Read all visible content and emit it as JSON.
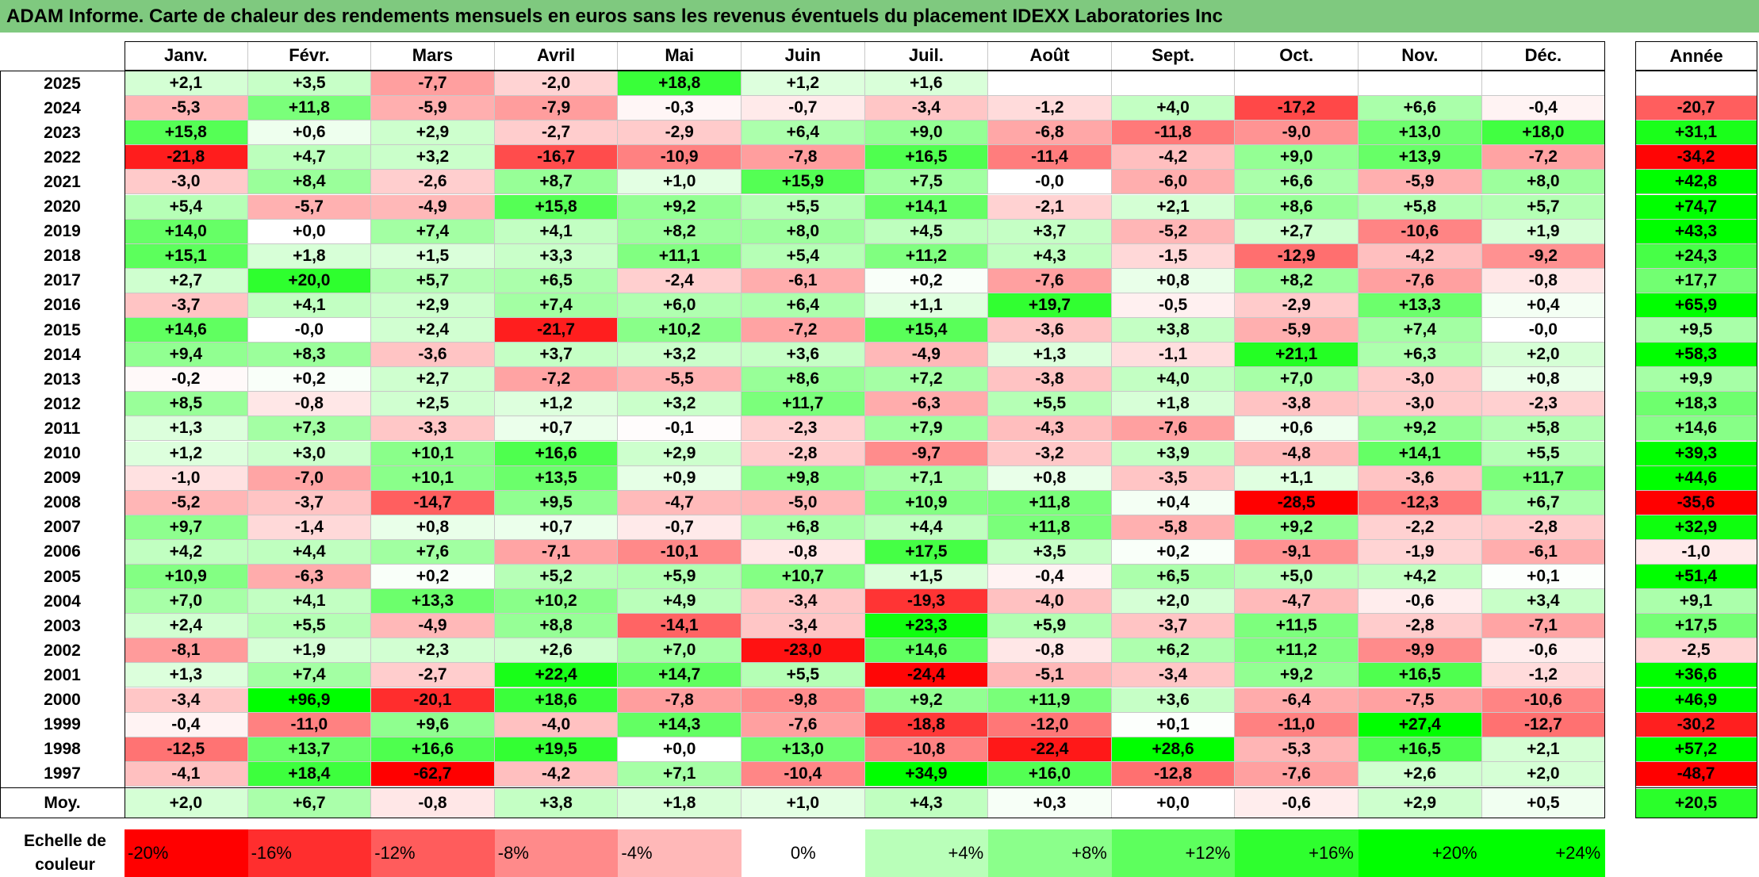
{
  "title": "ADAM Informe. Carte de chaleur des rendements mensuels en euros sans les revenus éventuels du placement IDEXX Laboratories Inc",
  "chart_data": {
    "type": "heatmap",
    "columns": [
      "Janv.",
      "Févr.",
      "Mars",
      "Avril",
      "Mai",
      "Juin",
      "Juil.",
      "Août",
      "Sept.",
      "Oct.",
      "Nov.",
      "Déc."
    ],
    "annual_header": "Année",
    "rows": [
      {
        "year": "2025",
        "values": [
          "+2,1",
          "+3,5",
          "-7,7",
          "-2,0",
          "+18,8",
          "+1,2",
          "+1,6",
          "",
          "",
          "",
          "",
          ""
        ],
        "annual": ""
      },
      {
        "year": "2024",
        "values": [
          "-5,3",
          "+11,8",
          "-5,9",
          "-7,9",
          "-0,3",
          "-0,7",
          "-3,4",
          "-1,2",
          "+4,0",
          "-17,2",
          "+6,6",
          "-0,4"
        ],
        "annual": "-20,7"
      },
      {
        "year": "2023",
        "values": [
          "+15,8",
          "+0,6",
          "+2,9",
          "-2,7",
          "-2,9",
          "+6,4",
          "+9,0",
          "-6,8",
          "-11,8",
          "-9,0",
          "+13,0",
          "+18,0"
        ],
        "annual": "+31,1"
      },
      {
        "year": "2022",
        "values": [
          "-21,8",
          "+4,7",
          "+3,2",
          "-16,7",
          "-10,9",
          "-7,8",
          "+16,5",
          "-11,4",
          "-4,2",
          "+9,0",
          "+13,9",
          "-7,2"
        ],
        "annual": "-34,2"
      },
      {
        "year": "2021",
        "values": [
          "-3,0",
          "+8,4",
          "-2,6",
          "+8,7",
          "+1,0",
          "+15,9",
          "+7,5",
          "-0,0",
          "-6,0",
          "+6,6",
          "-5,9",
          "+8,0"
        ],
        "annual": "+42,8"
      },
      {
        "year": "2020",
        "values": [
          "+5,4",
          "-5,7",
          "-4,9",
          "+15,8",
          "+9,2",
          "+5,5",
          "+14,1",
          "-2,1",
          "+2,1",
          "+8,6",
          "+5,8",
          "+5,7"
        ],
        "annual": "+74,7"
      },
      {
        "year": "2019",
        "values": [
          "+14,0",
          "+0,0",
          "+7,4",
          "+4,1",
          "+8,2",
          "+8,0",
          "+4,5",
          "+3,7",
          "-5,2",
          "+2,7",
          "-10,6",
          "+1,9"
        ],
        "annual": "+43,3"
      },
      {
        "year": "2018",
        "values": [
          "+15,1",
          "+1,8",
          "+1,5",
          "+3,3",
          "+11,1",
          "+5,4",
          "+11,2",
          "+4,3",
          "-1,5",
          "-12,9",
          "-4,2",
          "-9,2"
        ],
        "annual": "+24,3"
      },
      {
        "year": "2017",
        "values": [
          "+2,7",
          "+20,0",
          "+5,7",
          "+6,5",
          "-2,4",
          "-6,1",
          "+0,2",
          "-7,6",
          "+0,8",
          "+8,2",
          "-7,6",
          "-0,8"
        ],
        "annual": "+17,7"
      },
      {
        "year": "2016",
        "values": [
          "-3,7",
          "+4,1",
          "+2,9",
          "+7,4",
          "+6,0",
          "+6,4",
          "+1,1",
          "+19,7",
          "-0,5",
          "-2,9",
          "+13,3",
          "+0,4"
        ],
        "annual": "+65,9"
      },
      {
        "year": "2015",
        "values": [
          "+14,6",
          "-0,0",
          "+2,4",
          "-21,7",
          "+10,2",
          "-7,2",
          "+15,4",
          "-3,6",
          "+3,8",
          "-5,9",
          "+7,4",
          "-0,0"
        ],
        "annual": "+9,5"
      },
      {
        "year": "2014",
        "values": [
          "+9,4",
          "+8,3",
          "-3,6",
          "+3,7",
          "+3,2",
          "+3,6",
          "-4,9",
          "+1,3",
          "-1,1",
          "+21,1",
          "+6,3",
          "+2,0"
        ],
        "annual": "+58,3"
      },
      {
        "year": "2013",
        "values": [
          "-0,2",
          "+0,2",
          "+2,7",
          "-7,2",
          "-5,5",
          "+8,6",
          "+7,2",
          "-3,8",
          "+4,0",
          "+7,0",
          "-3,0",
          "+0,8"
        ],
        "annual": "+9,9"
      },
      {
        "year": "2012",
        "values": [
          "+8,5",
          "-0,8",
          "+2,5",
          "+1,2",
          "+3,2",
          "+11,7",
          "-6,3",
          "+5,5",
          "+1,8",
          "-3,8",
          "-3,0",
          "-2,3"
        ],
        "annual": "+18,3"
      },
      {
        "year": "2011",
        "values": [
          "+1,3",
          "+7,3",
          "-3,3",
          "+0,7",
          "-0,1",
          "-2,3",
          "+7,9",
          "-4,3",
          "-7,6",
          "+0,6",
          "+9,2",
          "+5,8"
        ],
        "annual": "+14,6"
      },
      {
        "year": "2010",
        "values": [
          "+1,2",
          "+3,0",
          "+10,1",
          "+16,6",
          "+2,9",
          "-2,8",
          "-9,7",
          "-3,2",
          "+3,9",
          "-4,8",
          "+14,1",
          "+5,5"
        ],
        "annual": "+39,3"
      },
      {
        "year": "2009",
        "values": [
          "-1,0",
          "-7,0",
          "+10,1",
          "+13,5",
          "+0,9",
          "+9,8",
          "+7,1",
          "+0,8",
          "-3,5",
          "+1,1",
          "-3,6",
          "+11,7"
        ],
        "annual": "+44,6"
      },
      {
        "year": "2008",
        "values": [
          "-5,2",
          "-3,7",
          "-14,7",
          "+9,5",
          "-4,7",
          "-5,0",
          "+10,9",
          "+11,8",
          "+0,4",
          "-28,5",
          "-12,3",
          "+6,7"
        ],
        "annual": "-35,6"
      },
      {
        "year": "2007",
        "values": [
          "+9,7",
          "-1,4",
          "+0,8",
          "+0,7",
          "-0,7",
          "+6,8",
          "+4,4",
          "+11,8",
          "-5,8",
          "+9,2",
          "-2,2",
          "-2,8"
        ],
        "annual": "+32,9"
      },
      {
        "year": "2006",
        "values": [
          "+4,2",
          "+4,4",
          "+7,6",
          "-7,1",
          "-10,1",
          "-0,8",
          "+17,5",
          "+3,5",
          "+0,2",
          "-9,1",
          "-1,9",
          "-6,1"
        ],
        "annual": "-1,0"
      },
      {
        "year": "2005",
        "values": [
          "+10,9",
          "-6,3",
          "+0,2",
          "+5,2",
          "+5,9",
          "+10,7",
          "+1,5",
          "-0,4",
          "+6,5",
          "+5,0",
          "+4,2",
          "+0,1"
        ],
        "annual": "+51,4"
      },
      {
        "year": "2004",
        "values": [
          "+7,0",
          "+4,1",
          "+13,3",
          "+10,2",
          "+4,9",
          "-3,4",
          "-19,3",
          "-4,0",
          "+2,0",
          "-4,7",
          "-0,6",
          "+3,4"
        ],
        "annual": "+9,1"
      },
      {
        "year": "2003",
        "values": [
          "+2,4",
          "+5,5",
          "-4,9",
          "+8,8",
          "-14,1",
          "-3,4",
          "+23,3",
          "+5,9",
          "-3,7",
          "+11,5",
          "-2,8",
          "-7,1"
        ],
        "annual": "+17,5"
      },
      {
        "year": "2002",
        "values": [
          "-8,1",
          "+1,9",
          "+2,3",
          "+2,6",
          "+7,0",
          "-23,0",
          "+14,6",
          "-0,8",
          "+6,2",
          "+11,2",
          "-9,9",
          "-0,6"
        ],
        "annual": "-2,5"
      },
      {
        "year": "2001",
        "values": [
          "+1,3",
          "+7,4",
          "-2,7",
          "+22,4",
          "+14,7",
          "+5,5",
          "-24,4",
          "-5,1",
          "-3,4",
          "+9,2",
          "+16,5",
          "-1,2"
        ],
        "annual": "+36,6"
      },
      {
        "year": "2000",
        "values": [
          "-3,4",
          "+96,9",
          "-20,1",
          "+18,6",
          "-7,8",
          "-9,8",
          "+9,2",
          "+11,9",
          "+3,6",
          "-6,4",
          "-7,5",
          "-10,6"
        ],
        "annual": "+46,9"
      },
      {
        "year": "1999",
        "values": [
          "-0,4",
          "-11,0",
          "+9,6",
          "-4,0",
          "+14,3",
          "-7,6",
          "-18,8",
          "-12,0",
          "+0,1",
          "-11,0",
          "+27,4",
          "-12,7"
        ],
        "annual": "-30,2"
      },
      {
        "year": "1998",
        "values": [
          "-12,5",
          "+13,7",
          "+16,6",
          "+19,5",
          "+0,0",
          "+13,0",
          "-10,8",
          "-22,4",
          "+28,6",
          "-5,3",
          "+16,5",
          "+2,1"
        ],
        "annual": "+57,2"
      },
      {
        "year": "1997",
        "values": [
          "-4,1",
          "+18,4",
          "-62,7",
          "-4,2",
          "+7,1",
          "-10,4",
          "+34,9",
          "+16,0",
          "-12,8",
          "-7,6",
          "+2,6",
          "+2,0"
        ],
        "annual": "-48,7"
      }
    ],
    "average": {
      "label": "Moy.",
      "values": [
        "+2,0",
        "+6,7",
        "-0,8",
        "+3,8",
        "+1,8",
        "+1,0",
        "+4,3",
        "+0,3",
        "+0,0",
        "-0,6",
        "+2,9",
        "+0,5"
      ],
      "annual": "+20,5"
    },
    "legend": {
      "label": "Echelle de couleur",
      "stops": [
        "-20%",
        "-16%",
        "-12%",
        "-8%",
        "-4%",
        "0%",
        "+4%",
        "+8%",
        "+12%",
        "+16%",
        "+20%",
        "+24%"
      ]
    },
    "colors": {
      "negative": "#ff0000",
      "neutral": "#ffffff",
      "positive": "#00ff00",
      "title_bar": "#7fc97f"
    }
  }
}
